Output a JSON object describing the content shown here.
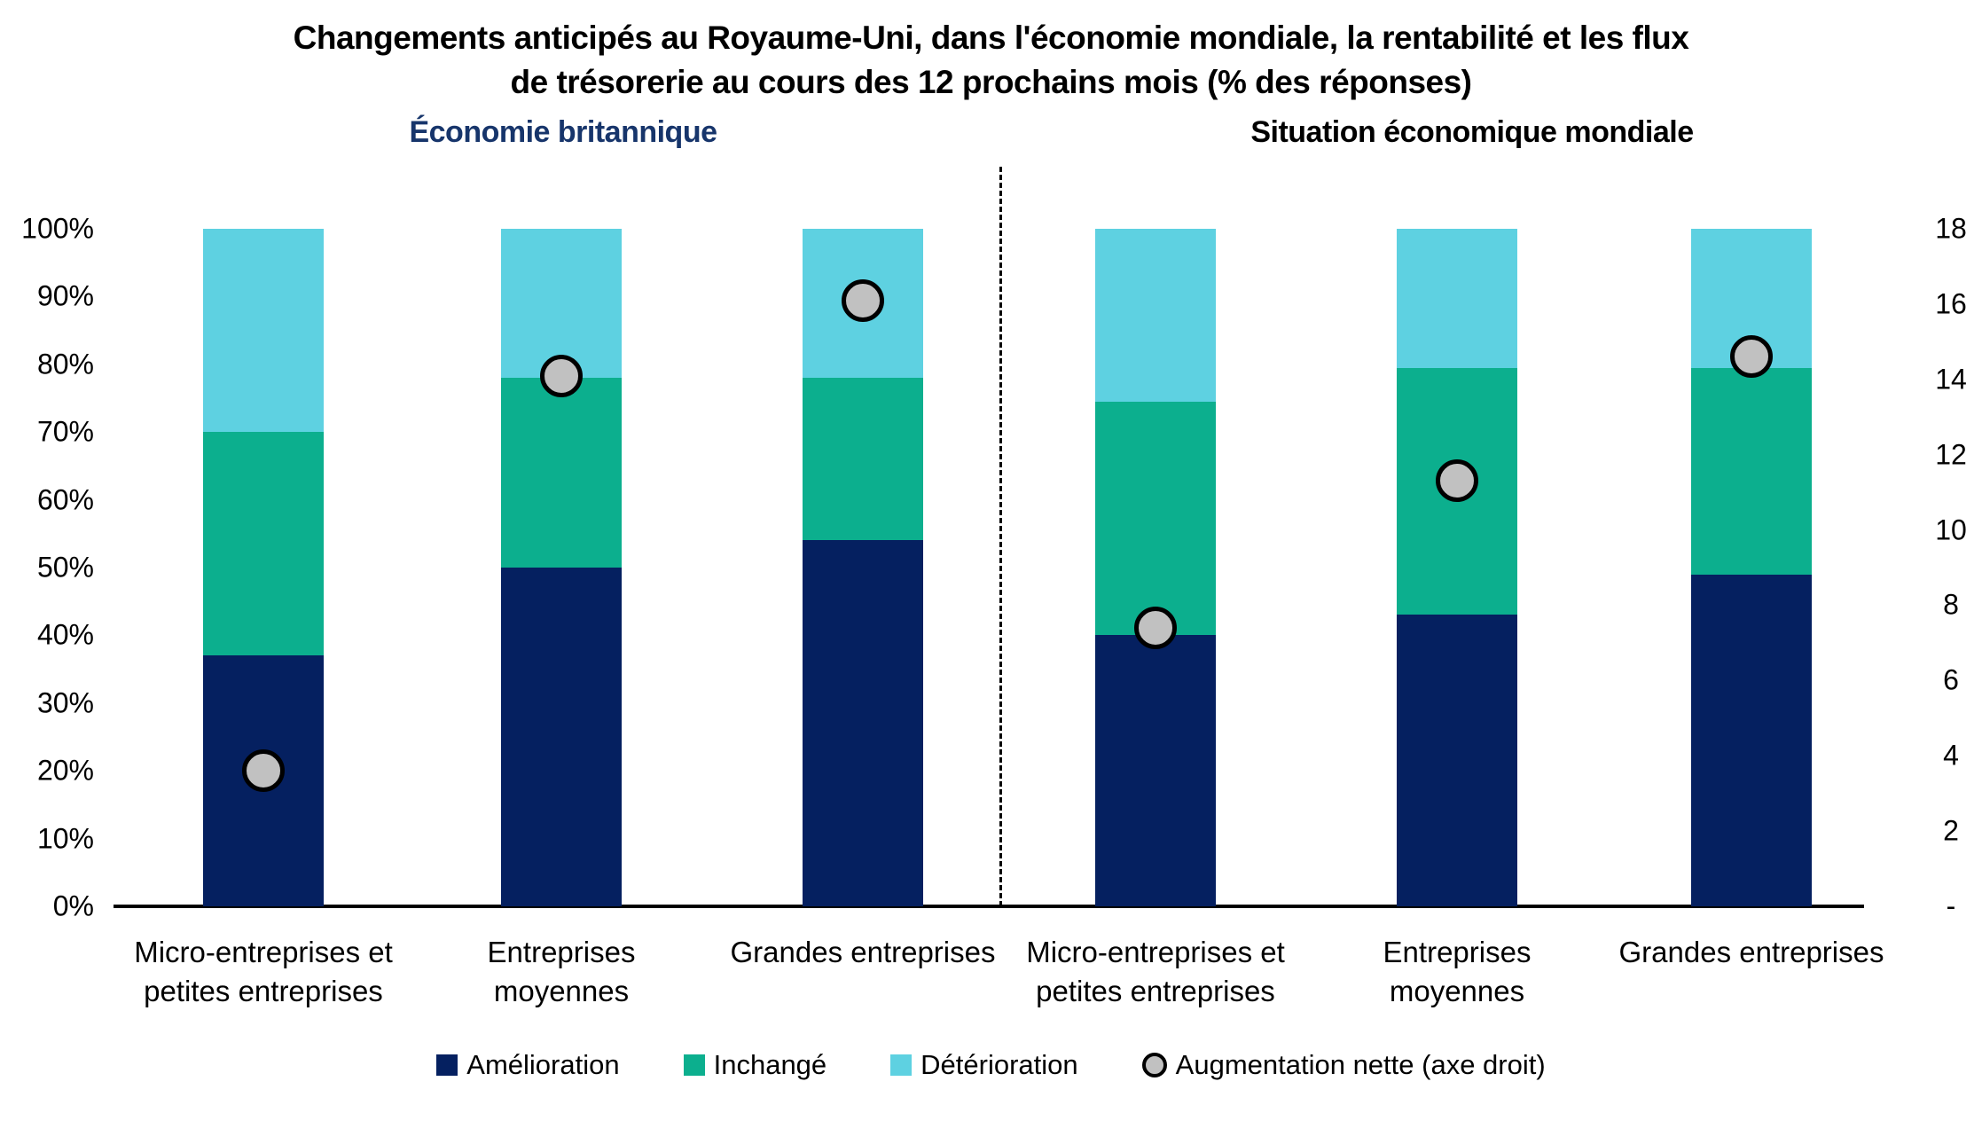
{
  "title": {
    "line1": "Changements anticipés au Royaume-Uni, dans l'économie mondiale, la rentabilité et les flux",
    "line2": "de trésorerie au cours des 12 prochains mois (% des réponses)"
  },
  "chart_data": {
    "type": "bar",
    "subtype": "stacked-100pct-columns-with-right-axis-scatter",
    "grid": false,
    "legend_position": "bottom",
    "groups": [
      {
        "title": "Économie britannique",
        "title_color": "#17356b",
        "categories": [
          [
            "Micro-entreprises et",
            "petites entreprises"
          ],
          [
            "Entreprises",
            "moyennes"
          ],
          [
            "Grandes entreprises"
          ]
        ]
      },
      {
        "title": "Situation économique mondiale",
        "title_color": "#000000",
        "categories": [
          [
            "Micro-entreprises et",
            "petites entreprises"
          ],
          [
            "Entreprises",
            "moyennes"
          ],
          [
            "Grandes entreprises"
          ]
        ]
      }
    ],
    "series": [
      {
        "name": "Amélioration",
        "type": "bar",
        "axis": "left",
        "color": "#052060",
        "values": [
          37,
          50,
          54,
          40,
          43,
          49
        ]
      },
      {
        "name": "Inchangé",
        "type": "bar",
        "axis": "left",
        "color": "#0caf8e",
        "values": [
          33,
          28,
          24,
          34.5,
          36.5,
          30.5
        ]
      },
      {
        "name": "Détérioration",
        "type": "bar",
        "axis": "left",
        "color": "#5ed1e1",
        "values": [
          30,
          22,
          22,
          25.5,
          20.5,
          20.5
        ]
      },
      {
        "name": "Augmentation nette (axe droit)",
        "type": "scatter",
        "axis": "right",
        "color": "#c1c1c1",
        "stroke": "#000000",
        "values": [
          3.6,
          14.1,
          16.1,
          7.4,
          11.3,
          14.6
        ]
      }
    ],
    "left_axis": {
      "min": 0,
      "max": 100,
      "tick_labels": [
        "0%",
        "10%",
        "20%",
        "30%",
        "40%",
        "50%",
        "60%",
        "70%",
        "80%",
        "90%",
        "100%"
      ]
    },
    "right_axis": {
      "min": 0,
      "max": 18,
      "tick_labels": [
        "-",
        "2",
        "4",
        "6",
        "8",
        "10",
        "12",
        "14",
        "16",
        "18"
      ]
    }
  }
}
